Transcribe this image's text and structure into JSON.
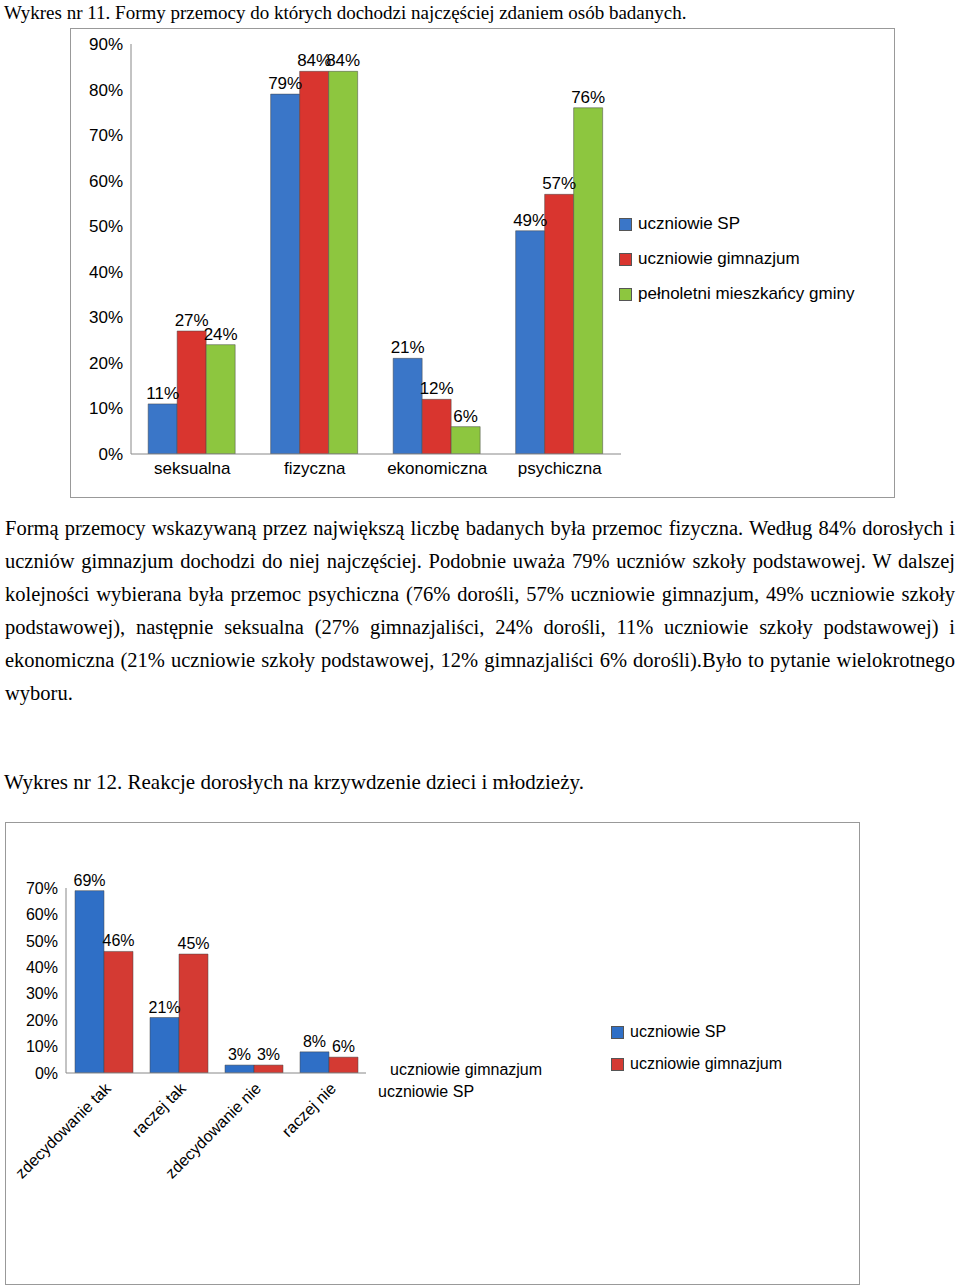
{
  "chart_data": [
    {
      "type": "bar",
      "title": "Wykres nr 11. Formy przemocy do których dochodzi najczęściej zdaniem osób badanych.",
      "categories": [
        "seksualna",
        "fizyczna",
        "ekonomiczna",
        "psychiczna"
      ],
      "series": [
        {
          "name": "uczniowie SP",
          "color": "#3a76c8",
          "values": [
            11,
            79,
            21,
            49
          ],
          "value_labels": [
            "11%",
            "79%",
            "21%",
            "49%"
          ]
        },
        {
          "name": "uczniowie gimnazjum",
          "color": "#d9352f",
          "values": [
            27,
            84,
            12,
            57
          ],
          "value_labels": [
            "27%",
            "84%",
            "12%",
            "57%"
          ]
        },
        {
          "name": "pełnoletni mieszkańcy gminy",
          "color": "#8dc63f",
          "values": [
            24,
            84,
            6,
            76
          ],
          "value_labels": [
            "24%",
            "84%",
            "6%",
            "76%"
          ]
        }
      ],
      "ylim": [
        0,
        90
      ],
      "yticks": [
        {
          "value": 0,
          "label": "0%"
        },
        {
          "value": 10,
          "label": "10%"
        },
        {
          "value": 20,
          "label": "20%"
        },
        {
          "value": 30,
          "label": "30%"
        },
        {
          "value": 40,
          "label": "40%"
        },
        {
          "value": 50,
          "label": "50%"
        },
        {
          "value": 60,
          "label": "60%"
        },
        {
          "value": 70,
          "label": "70%"
        },
        {
          "value": 80,
          "label": "80%"
        },
        {
          "value": 90,
          "label": "90%"
        }
      ],
      "grid": false,
      "legend": "right",
      "data_labels": true
    },
    {
      "type": "bar",
      "title": "Wykres nr 12. Reakcje dorosłych na krzywdzenie dzieci i młodzieży.",
      "categories": [
        "zdecydowanie tak",
        "raczej tak",
        "zdecydowanie nie",
        "raczej nie"
      ],
      "series": [
        {
          "name": "uczniowie SP",
          "color": "#2f6fc6",
          "values": [
            69,
            21,
            3,
            8
          ],
          "value_labels": [
            "69%",
            "21%",
            "3%",
            "8%"
          ]
        },
        {
          "name": "uczniowie gimnazjum",
          "color": "#d43a33",
          "values": [
            46,
            45,
            3,
            6
          ],
          "value_labels": [
            "46%",
            "45%",
            "3%",
            "6%"
          ]
        }
      ],
      "annotations": [
        "uczniowie gimnazjum",
        "uczniowie SP"
      ],
      "ylim": [
        0,
        70
      ],
      "yticks": [
        {
          "value": 0,
          "label": "0%"
        },
        {
          "value": 10,
          "label": "10%"
        },
        {
          "value": 20,
          "label": "20%"
        },
        {
          "value": 30,
          "label": "30%"
        },
        {
          "value": 40,
          "label": "40%"
        },
        {
          "value": 50,
          "label": "50%"
        },
        {
          "value": 60,
          "label": "60%"
        },
        {
          "value": 70,
          "label": "70%"
        }
      ],
      "grid": false,
      "legend": "right",
      "data_labels": true
    }
  ],
  "text": "Formą przemocy wskazywaną przez największą liczbę badanych była przemoc fizyczna. Według 84% dorosłych i uczniów gimnazjum dochodzi do niej najczęściej. Podobnie uważa 79% uczniów szkoły podstawowej. W dalszej kolejności wybierana była przemoc psychiczna (76% dorośli, 57% uczniowie gimnazjum, 49% uczniowie szkoły podstawowej), następnie seksualna (27% gimnazjaliści, 24% dorośli, 11% uczniowie szkoły podstawowej) i ekonomiczna (21% uczniowie szkoły podstawowej, 12% gimnazjaliści 6% dorośli).Było to pytanie wielokrotnego wyboru."
}
